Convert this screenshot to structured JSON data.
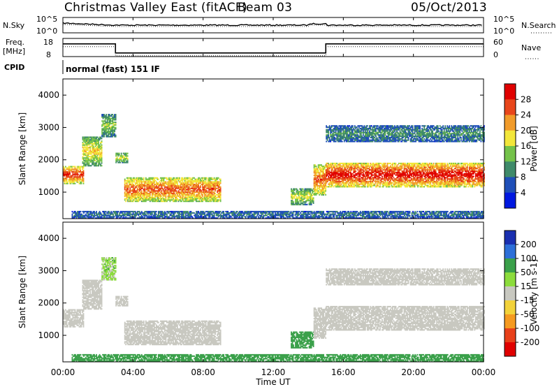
{
  "chart_data": {
    "type": "heatmap",
    "title": "Christmas Valley East (fitACF)",
    "beam": "Beam 03",
    "date": "05/Oct/2013",
    "cpid": "normal (fast) 151 IF",
    "xlabel": "Time UT",
    "xticks": [
      "00:00",
      "04:00",
      "08:00",
      "12:00",
      "16:00",
      "20:00",
      "00:00"
    ],
    "xlim_hours": [
      0,
      24
    ],
    "noise_panel": {
      "left_label": "N.Sky",
      "right_label": "N.Search",
      "left_ticks": [
        "10^5",
        "10^0"
      ],
      "right_ticks": [
        "10^5",
        "10^0"
      ]
    },
    "freq_panel": {
      "left_label_1": "Freq.",
      "left_label_2": "[MHz]",
      "right_label": "Nave",
      "left_ticks": [
        "18",
        "8"
      ],
      "right_ticks": [
        "60",
        "0"
      ],
      "freq_steps": [
        [
          0,
          15
        ],
        [
          3,
          10
        ],
        [
          15,
          15
        ],
        [
          24,
          15
        ]
      ]
    },
    "cpid_label": "CPID",
    "panels": [
      {
        "name": "power",
        "ylabel": "Slant Range [km]",
        "yticks": [
          "1000",
          "2000",
          "3000",
          "4000"
        ],
        "ylim": [
          180,
          4500
        ],
        "colorbar_label": "Power [dB]",
        "colorbar_ticks": [
          "4",
          "8",
          "12",
          "16",
          "20",
          "24",
          "28"
        ],
        "colors": [
          "#0018e0",
          "#1f4fb8",
          "#3f8a6a",
          "#74c24a",
          "#f2e63a",
          "#f19b2a",
          "#e8461b",
          "#e00000"
        ]
      },
      {
        "name": "velocity",
        "ylabel": "Slant Range [km]",
        "yticks": [
          "1000",
          "2000",
          "3000",
          "4000"
        ],
        "ylim": [
          180,
          4500
        ],
        "colorbar_label": "Velocity [m s-1]",
        "colorbar_ticks": [
          "200",
          "100",
          "50",
          "15",
          "-15",
          "-50",
          "-100",
          "-200"
        ],
        "colors": [
          "#1a2fb0",
          "#2d6fd8",
          "#3aa04a",
          "#8cdc3c",
          "#c8c8c0",
          "#f2d23a",
          "#f59a20",
          "#e8401a",
          "#e00000"
        ]
      }
    ],
    "echo_regions": [
      {
        "t0": 0.0,
        "t1": 1.2,
        "r0": 1250,
        "r1": 1800,
        "power": 24,
        "velocity": 0
      },
      {
        "t0": 1.1,
        "t1": 2.2,
        "r0": 1800,
        "r1": 2700,
        "power": 16,
        "velocity": 0
      },
      {
        "t0": 2.2,
        "t1": 3.0,
        "r0": 2700,
        "r1": 3400,
        "power": 12,
        "velocity": 20
      },
      {
        "t0": 3.0,
        "t1": 3.7,
        "r0": 1900,
        "r1": 2200,
        "power": 14,
        "velocity": 0
      },
      {
        "t0": 3.5,
        "t1": 9.0,
        "r0": 700,
        "r1": 1450,
        "power": 22,
        "velocity": 0
      },
      {
        "t0": 13.0,
        "t1": 14.3,
        "r0": 600,
        "r1": 1100,
        "power": 14,
        "velocity": 60
      },
      {
        "t0": 14.3,
        "t1": 15.0,
        "r0": 900,
        "r1": 1850,
        "power": 22,
        "velocity": 0
      },
      {
        "t0": 15.0,
        "t1": 24.0,
        "r0": 1150,
        "r1": 1900,
        "power": 26,
        "velocity": 0
      },
      {
        "t0": 15.0,
        "t1": 24.0,
        "r0": 2550,
        "r1": 3050,
        "power": 8,
        "velocity": 0
      },
      {
        "t0": 0.5,
        "t1": 24.0,
        "r0": 180,
        "r1": 420,
        "power": 6,
        "velocity": 60
      }
    ]
  }
}
